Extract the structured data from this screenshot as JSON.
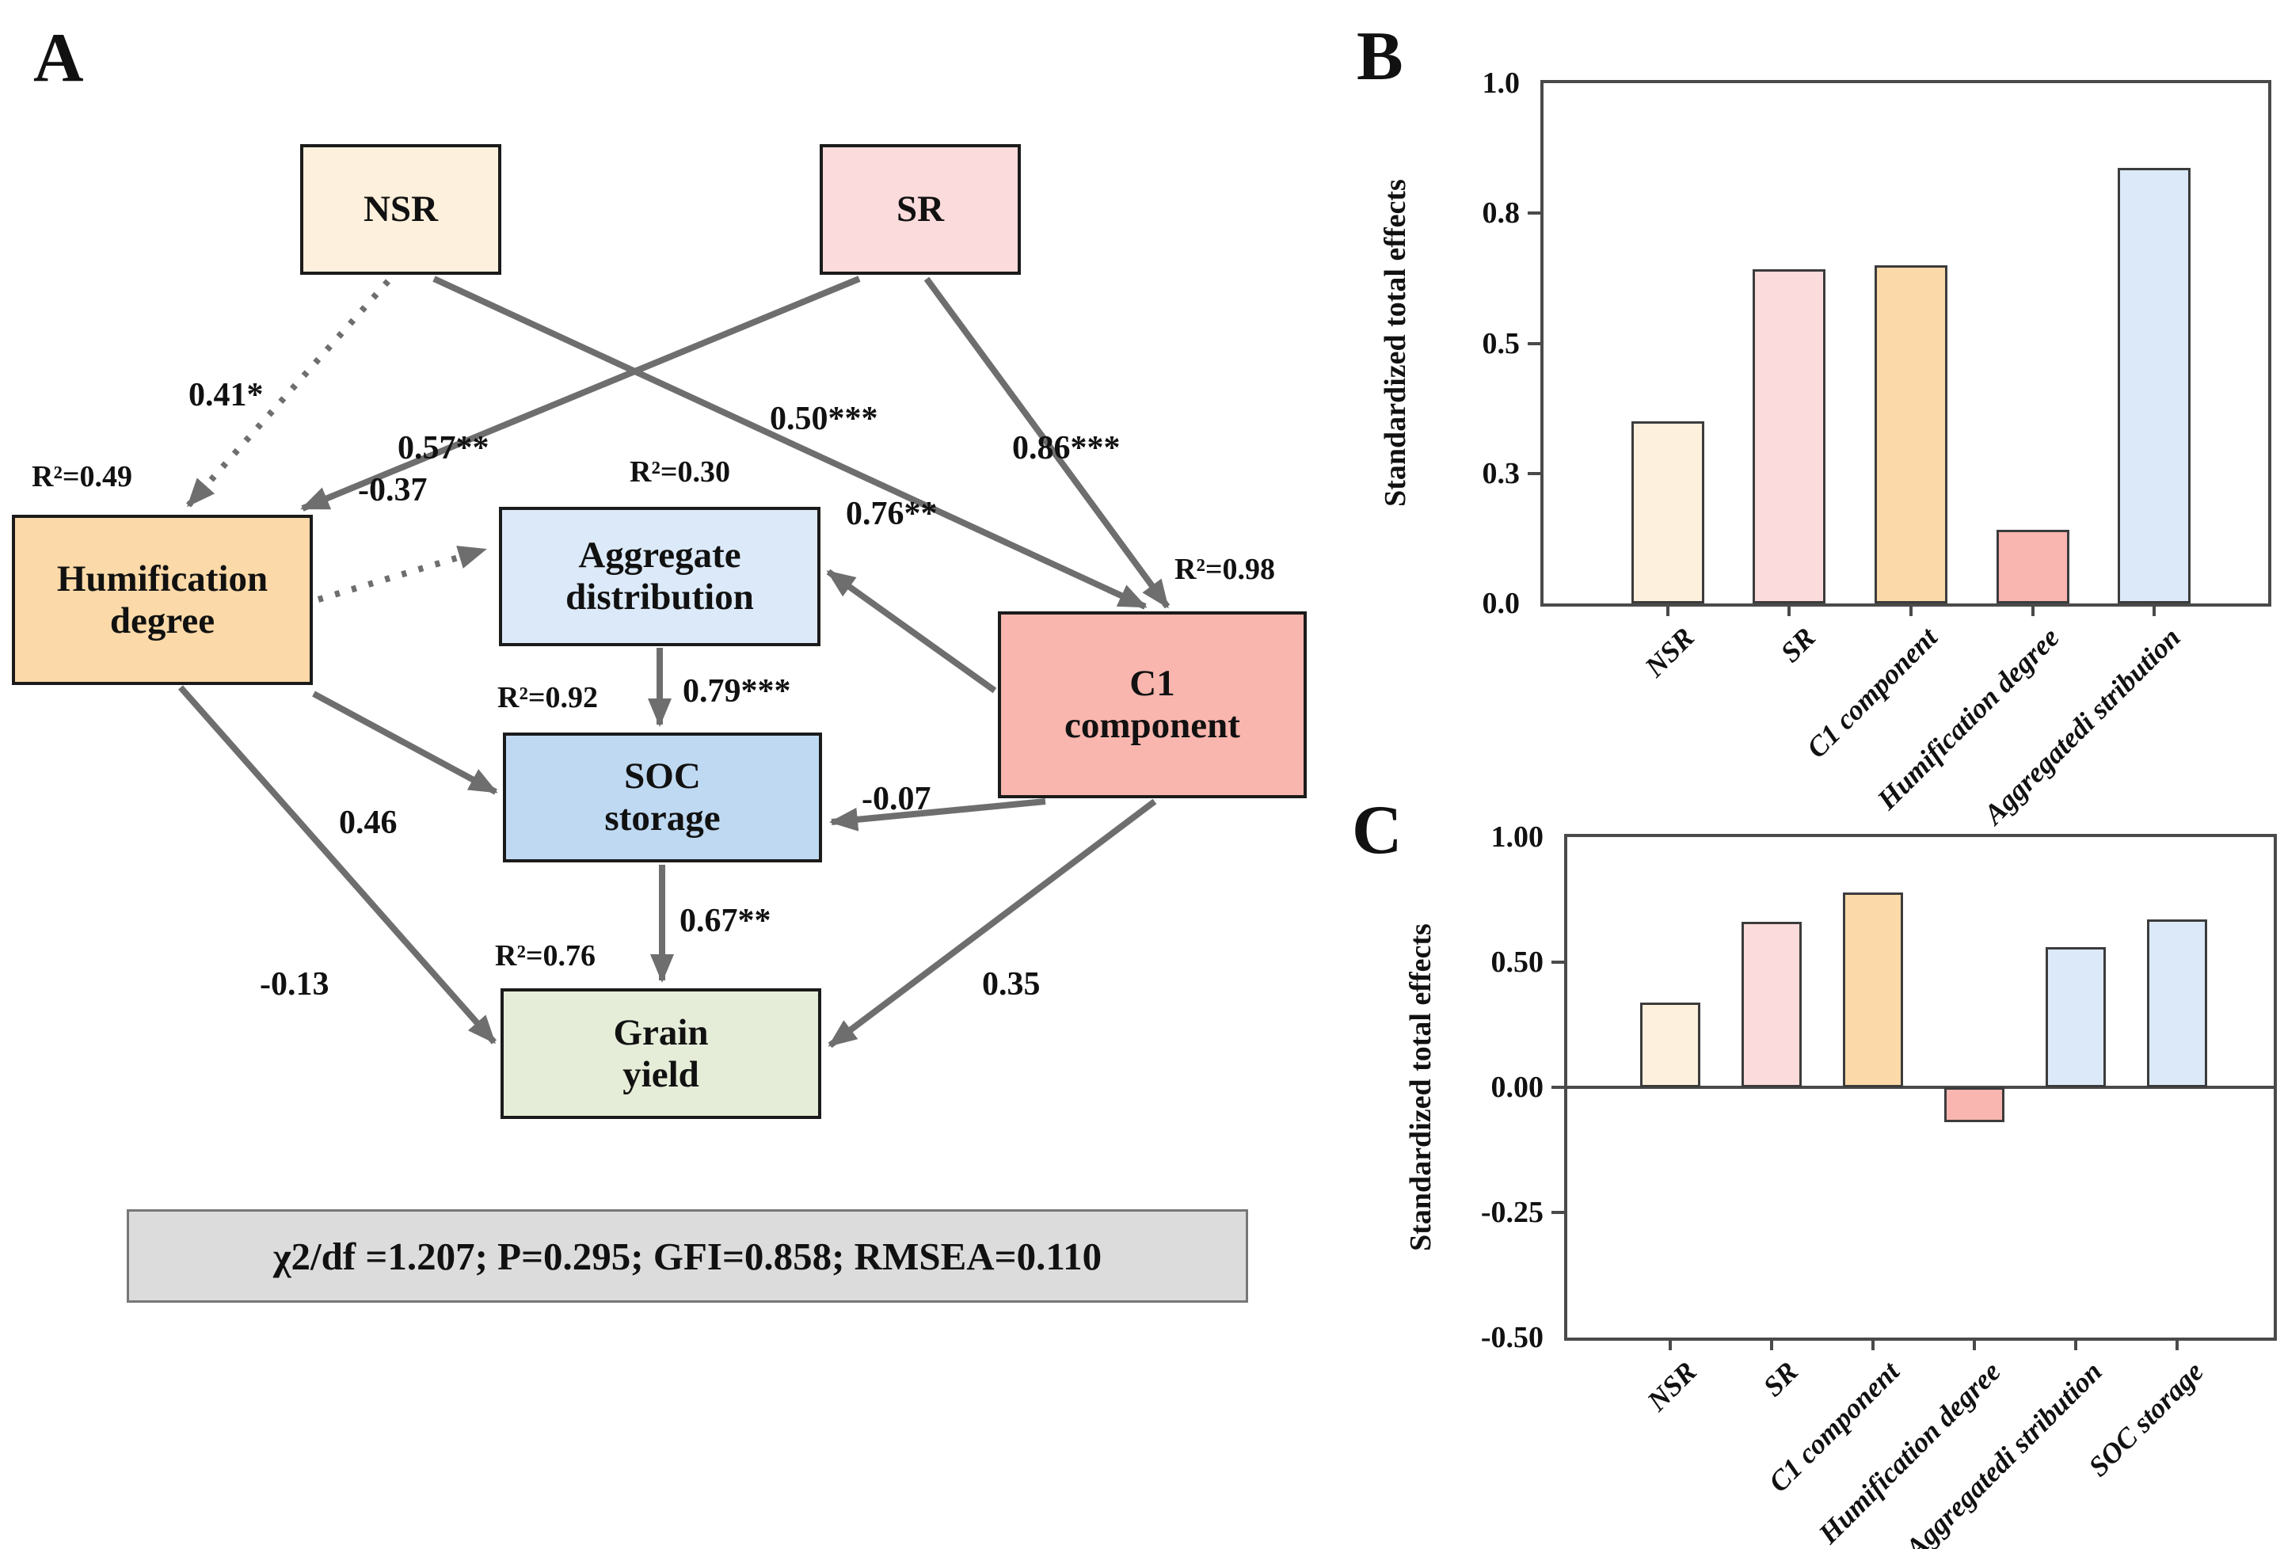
{
  "panels": {
    "a": {
      "label": "A"
    },
    "b": {
      "label": "B"
    },
    "c": {
      "label": "C"
    }
  },
  "sem": {
    "nodes": {
      "nsr": {
        "label": "NSR"
      },
      "sr": {
        "label": "SR"
      },
      "humification": {
        "label": "Humification\ndegree",
        "r2": "R²=0.49"
      },
      "aggregate": {
        "label": "Aggregate\ndistribution",
        "r2": "R²=0.30"
      },
      "c1": {
        "label": "C1\ncomponent",
        "r2": "R²=0.98"
      },
      "soc": {
        "label": "SOC\nstorage",
        "r2": "R²=0.92"
      },
      "grain": {
        "label": "Grain\nyield",
        "r2": "R²=0.76"
      }
    },
    "paths": {
      "nsr_humification": {
        "coef": "0.41*",
        "style": "dotted"
      },
      "nsr_c1": {
        "coef": "0.57**",
        "style": "solid"
      },
      "sr_humification": {
        "coef": "0.50***",
        "style": "solid"
      },
      "sr_c1": {
        "coef": "0.86***",
        "style": "solid"
      },
      "humification_aggregate": {
        "coef": "-0.37",
        "style": "dotted"
      },
      "c1_aggregate": {
        "coef": "0.76**",
        "style": "solid"
      },
      "aggregate_soc": {
        "coef": "0.79***",
        "style": "solid"
      },
      "humification_soc": {
        "coef": "0.46",
        "style": "solid"
      },
      "c1_soc": {
        "coef": "-0.07",
        "style": "solid"
      },
      "soc_grain": {
        "coef": "0.67**",
        "style": "solid"
      },
      "humification_grain": {
        "coef": "-0.13",
        "style": "solid"
      },
      "c1_grain": {
        "coef": "0.35",
        "style": "solid"
      }
    },
    "fit": "χ2/df =1.207; P=0.295; GFI=0.858; RMSEA=0.110",
    "colors": {
      "nsr": "#fdf0dc",
      "sr": "#fbdbdb",
      "humification": "#fbd9a8",
      "aggregate": "#dce9f8",
      "c1": "#f8b6ae",
      "soc": "#bfd9f2",
      "grain": "#e5edd8",
      "arrow": "#6e6e6e",
      "fitbox": "#dcdcdc"
    }
  },
  "chart_data": [
    {
      "id": "B",
      "type": "bar",
      "title": "",
      "xlabel": "",
      "ylabel": "Standardized total effects",
      "ylim": [
        0.0,
        1.0
      ],
      "grid": false,
      "legend": "none",
      "yticks": [
        {
          "label": "1.0",
          "value": 1.0
        },
        {
          "label": "0.8",
          "value": 0.8
        },
        {
          "label": "0.5",
          "value": 0.5
        },
        {
          "label": "0.3",
          "value": 0.3
        },
        {
          "label": "0.0",
          "value": 0.0
        }
      ],
      "categories": [
        "NSR",
        "SR",
        "C1 component",
        "Humification degree",
        "Aggregatedi stribution"
      ],
      "values": [
        0.38,
        0.67,
        0.68,
        0.17,
        0.87
      ],
      "colors": [
        "#fdf0dc",
        "#fbdbdb",
        "#fbd9a8",
        "#f9b5b0",
        "#dbe9f8"
      ],
      "baseline": 0.0
    },
    {
      "id": "C",
      "type": "bar",
      "title": "",
      "xlabel": "",
      "ylabel": "Standardized total effects",
      "ylim": [
        -0.5,
        1.0
      ],
      "grid": false,
      "legend": "none",
      "yticks": [
        {
          "label": "1.00",
          "value": 1.0
        },
        {
          "label": "0.50",
          "value": 0.5
        },
        {
          "label": "0.00",
          "value": 0.0
        },
        {
          "label": "-0.25",
          "value": -0.25
        },
        {
          "label": "-0.50",
          "value": -0.5
        }
      ],
      "categories": [
        "NSR",
        "SR",
        "C1 component",
        "Humification degree",
        "Aggregatedi stribution",
        "SOC storage"
      ],
      "values": [
        0.34,
        0.66,
        0.78,
        -0.07,
        0.56,
        0.67
      ],
      "colors": [
        "#fdf0dc",
        "#fbdbdb",
        "#fbd9a8",
        "#f9b5b0",
        "#dbe9f8",
        "#dbe9f8"
      ],
      "baseline": 0.0
    }
  ]
}
